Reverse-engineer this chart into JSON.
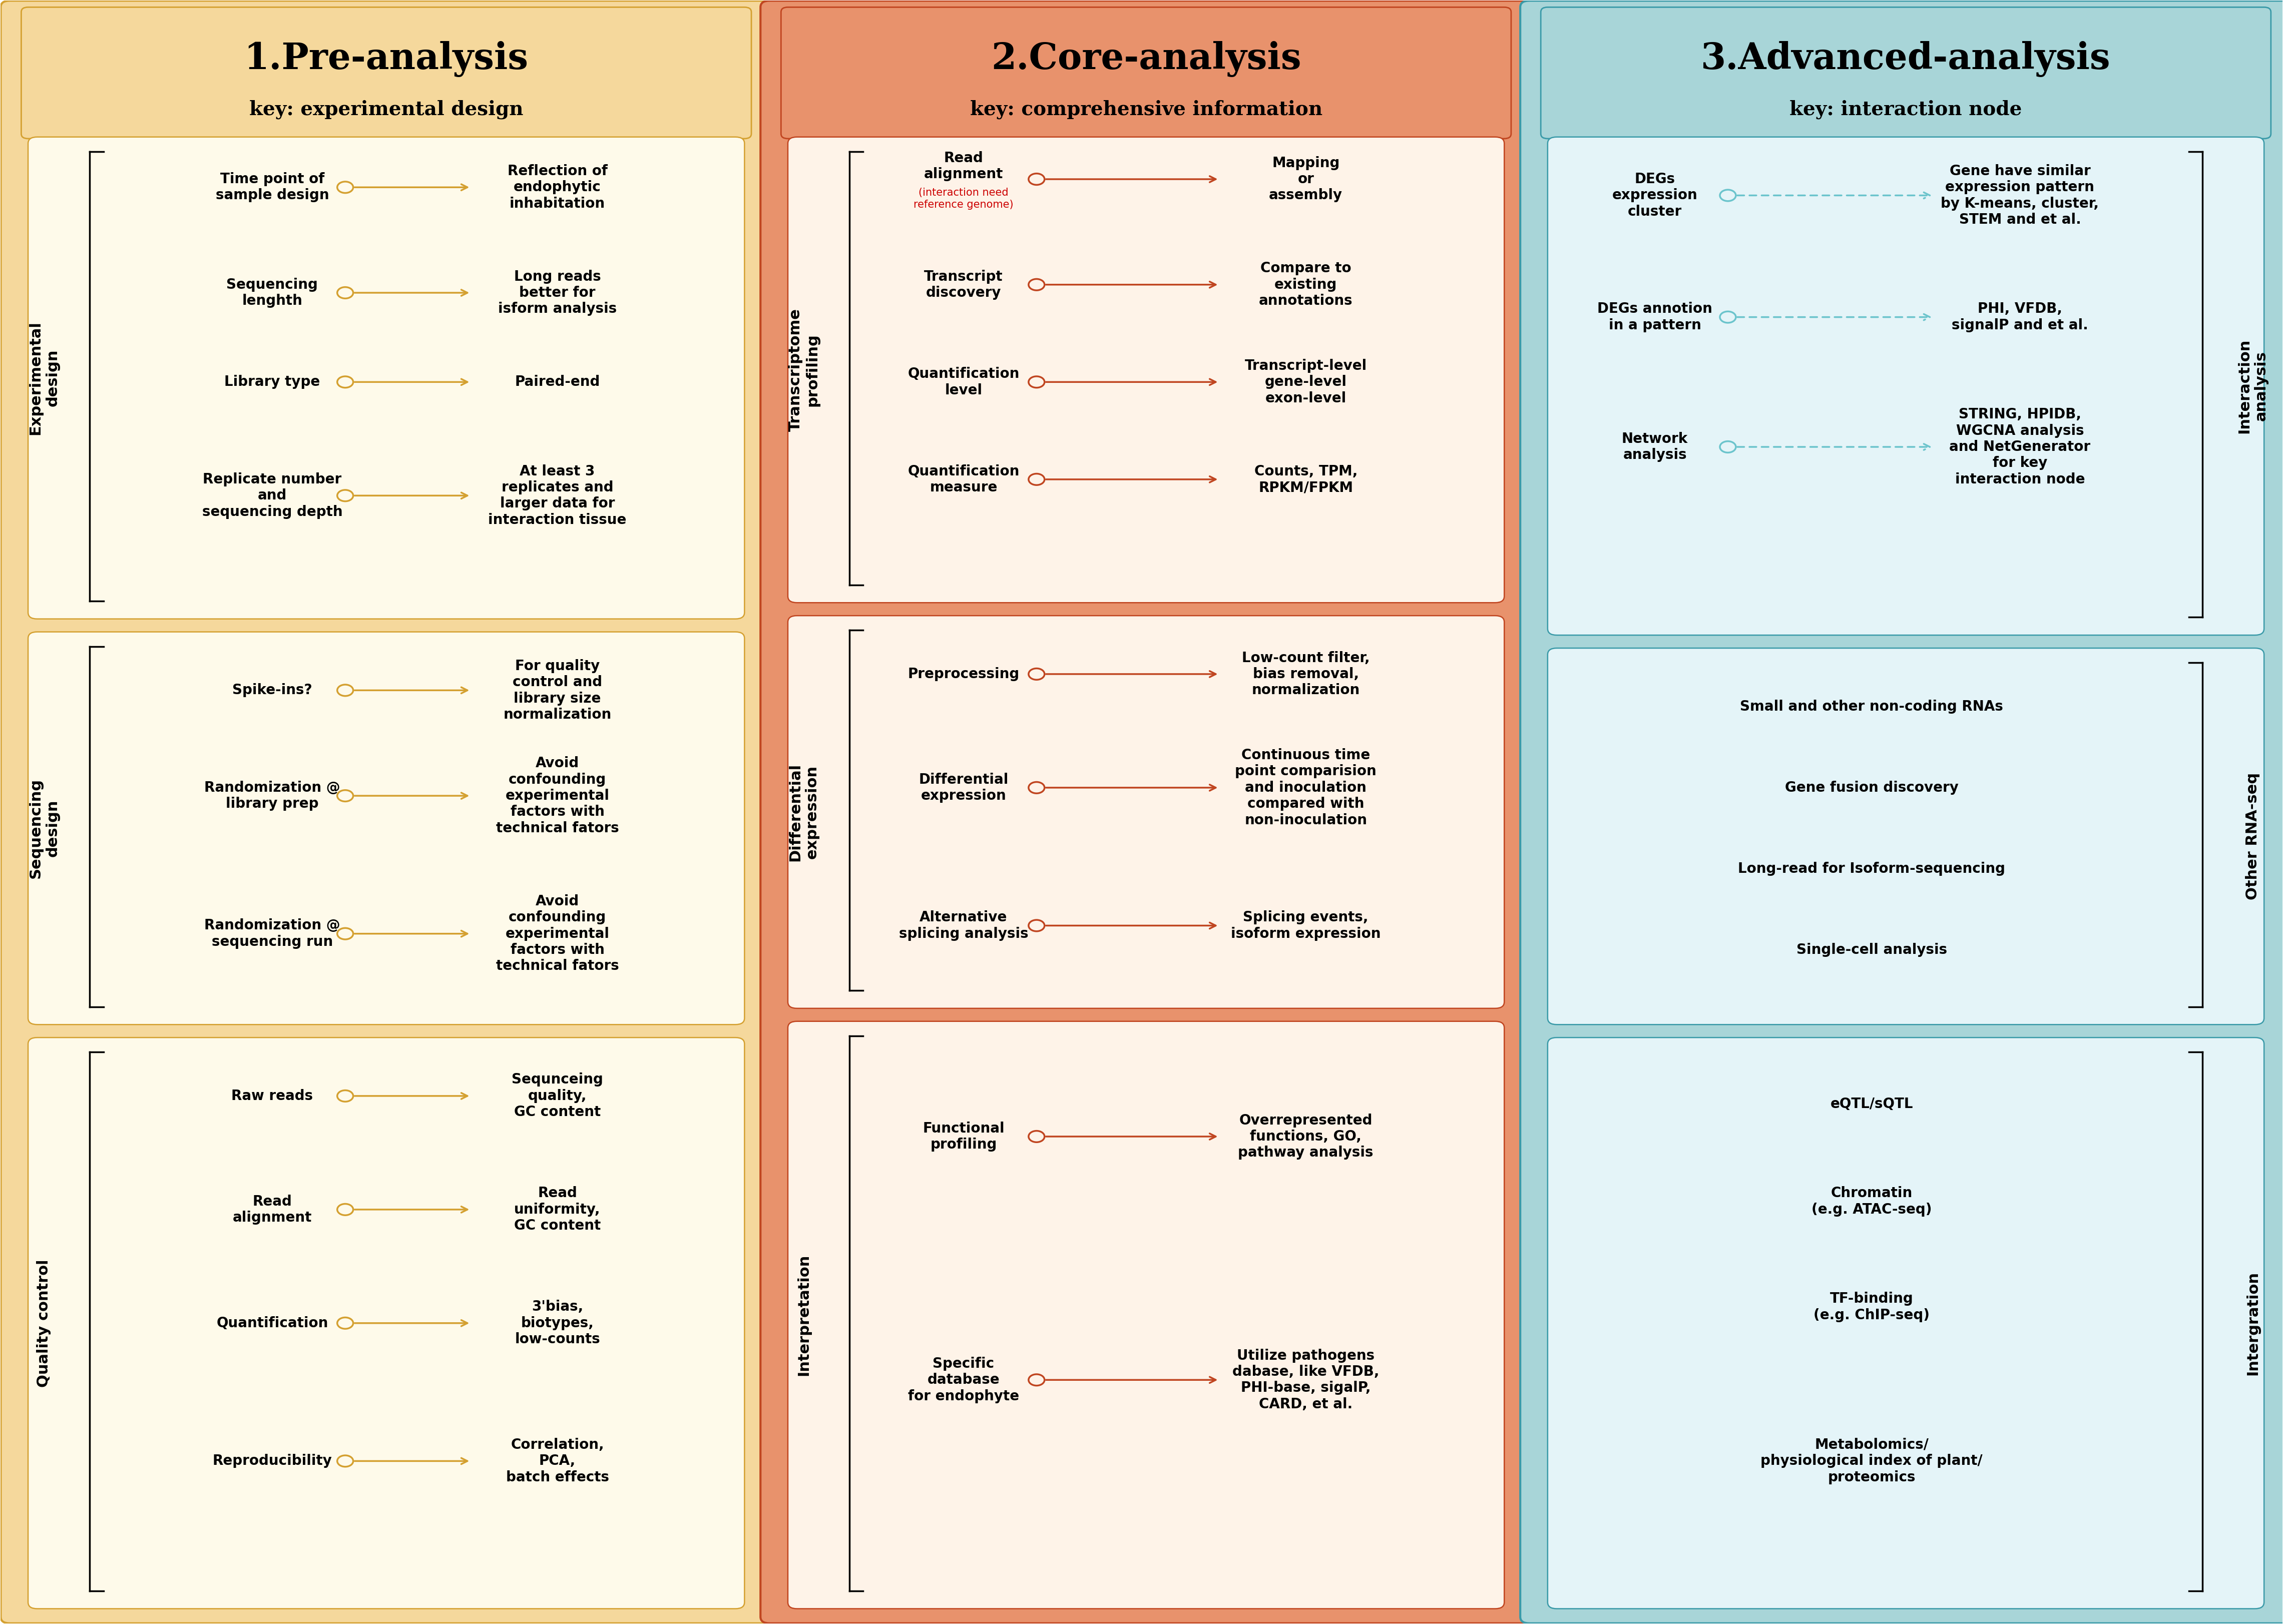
{
  "col1_bg": "#F5D89C",
  "col2_bg": "#E8926C",
  "col3_bg": "#A8D5D8",
  "col1_border": "#D4A030",
  "col2_border": "#C04520",
  "col3_border": "#3A9AA8",
  "sec1_bg": "#FEFAEA",
  "sec2_bg": "#FEF3E8",
  "sec3_bg": "#E4F4F8",
  "arrow1": "#D4A030",
  "arrow2": "#C04520",
  "arrow3": "#6BC4CC",
  "red": "#CC0000",
  "col1_title": "1.Pre-analysis",
  "col1_sub": "key: experimental design",
  "col2_title": "2.Core-analysis",
  "col2_sub": "key: comprehensive information",
  "col3_title": "3.Advanced-analysis",
  "col3_sub": "key: interaction node"
}
